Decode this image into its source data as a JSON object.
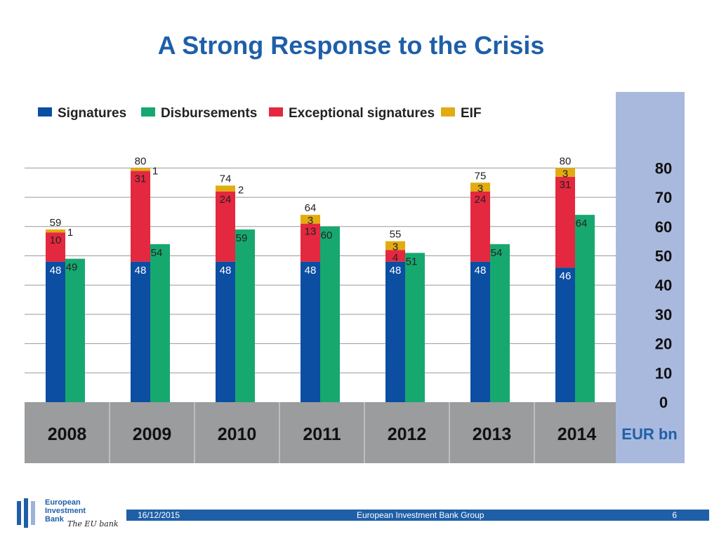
{
  "title": "A Strong Response to the Crisis",
  "colors": {
    "signatures": "#0b4ea2",
    "disbursements": "#17a86f",
    "exceptional": "#e4283f",
    "eif": "#e2ac11",
    "axis_panel": "#a9b9de",
    "year_band": "#9a9c9e",
    "accent": "#1f5fa8"
  },
  "chart_data": {
    "type": "bar",
    "title": "",
    "unit_label": "EUR bn",
    "categories": [
      "2008",
      "2009",
      "2010",
      "2011",
      "2012",
      "2013",
      "2014"
    ],
    "legend": [
      "Signatures",
      "Disbursements",
      "Exceptional signatures",
      "EIF"
    ],
    "series": [
      {
        "name": "Signatures",
        "stack": "signatures",
        "values": [
          48,
          48,
          48,
          48,
          48,
          48,
          46
        ]
      },
      {
        "name": "Exceptional signatures",
        "stack": "signatures",
        "values": [
          10,
          31,
          24,
          13,
          4,
          24,
          31
        ]
      },
      {
        "name": "EIF",
        "stack": "signatures",
        "values": [
          1,
          1,
          2,
          3,
          3,
          3,
          3
        ]
      },
      {
        "name": "Disbursements",
        "stack": "disbursements",
        "values": [
          49,
          54,
          59,
          60,
          51,
          54,
          64
        ]
      }
    ],
    "totals": [
      59,
      80,
      74,
      64,
      55,
      75,
      80
    ],
    "yticks": [
      80,
      70,
      60,
      50,
      40,
      30,
      20,
      10,
      0
    ],
    "ylim": [
      0,
      80
    ],
    "legend_position": "top-left",
    "axis_position": "right"
  },
  "footer": {
    "date": "16/12/2015",
    "organization": "European Investment Bank Group",
    "page": "6"
  },
  "logo": {
    "line1": "European",
    "line2": "Investment",
    "line3": "Bank",
    "tagline": "The EU bank"
  }
}
